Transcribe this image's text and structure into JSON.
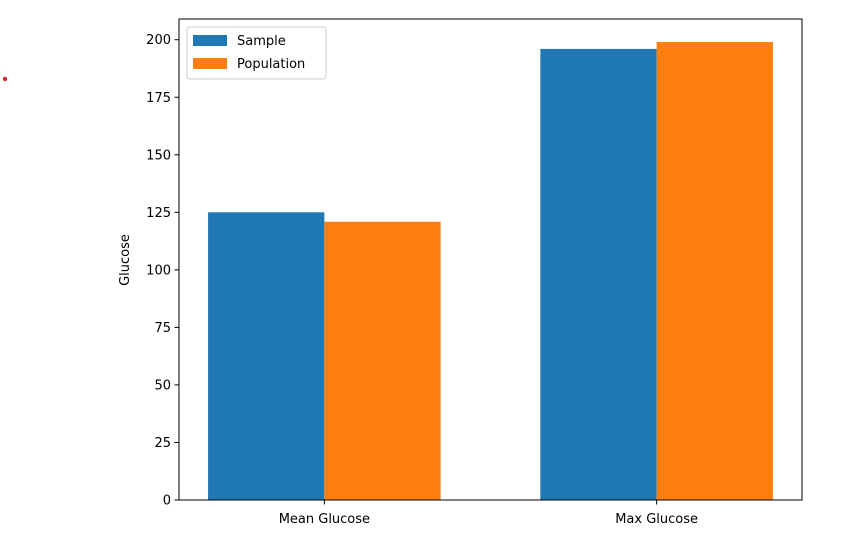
{
  "chart_data": {
    "type": "bar",
    "title": "",
    "xlabel": "",
    "ylabel": "Glucose",
    "categories": [
      "Mean Glucose",
      "Max Glucose"
    ],
    "series": [
      {
        "name": "Sample",
        "values": [
          125,
          196
        ],
        "color": "#1f77b4"
      },
      {
        "name": "Population",
        "values": [
          120.9,
          199
        ],
        "color": "#ff7f0e"
      }
    ],
    "ylim": [
      0,
      209
    ],
    "yticks": [
      0,
      25,
      50,
      75,
      100,
      125,
      150,
      175,
      200
    ],
    "grid": false,
    "legend_position": "top-left"
  },
  "annotation_dot_color": "#d62728"
}
